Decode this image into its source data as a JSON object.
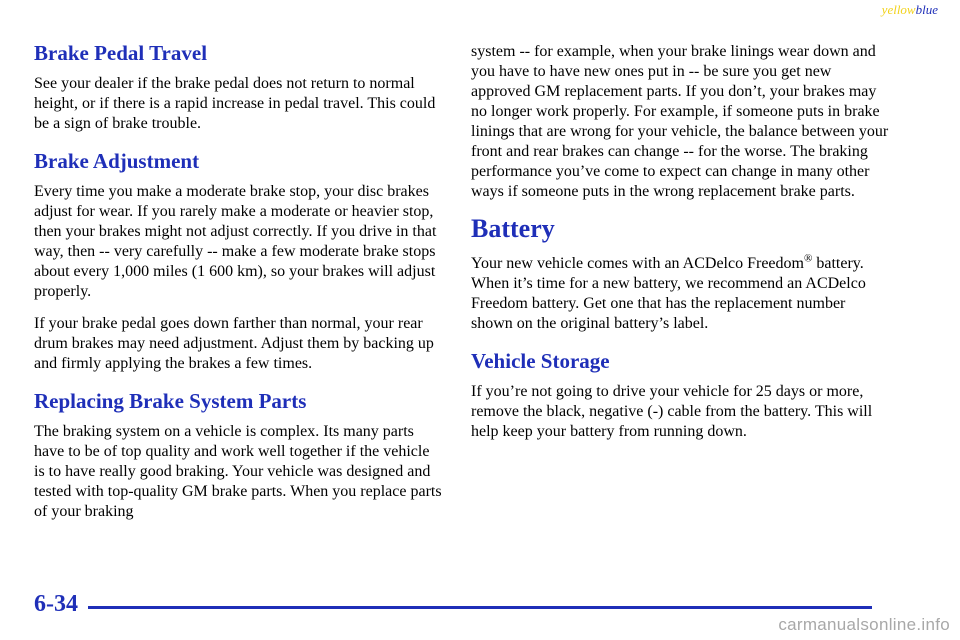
{
  "corner_tag": {
    "yellow": "yellow",
    "blue": "blue"
  },
  "left_column": {
    "brake_pedal_travel": {
      "heading": "Brake Pedal Travel",
      "paragraph": "See your dealer if the brake pedal does not return to normal height, or if there is a rapid increase in pedal travel. This could be a sign of brake trouble."
    },
    "brake_adjustment": {
      "heading": "Brake Adjustment",
      "paragraph_1": "Every time you make a moderate brake stop, your disc brakes adjust for wear. If you rarely make a moderate or heavier stop, then your brakes might not adjust correctly. If you drive in that way, then -- very carefully -- make a few moderate brake stops about every 1,000 miles (1 600 km), so your brakes will adjust properly.",
      "paragraph_2": "If your brake pedal goes down farther than normal, your rear drum brakes may need adjustment. Adjust them by backing up and firmly applying the brakes a few times."
    },
    "replacing_parts": {
      "heading": "Replacing Brake System Parts",
      "paragraph": "The braking system on a vehicle is complex. Its many parts have to be of top quality and work well together if the vehicle is to have really good braking. Your vehicle was designed and tested with top-quality GM brake parts. When you replace parts of your braking"
    }
  },
  "right_column": {
    "continued_paragraph": "system -- for example, when your brake linings wear down and you have to have new ones put in -- be sure you get new approved GM replacement parts. If you don’t, your brakes may no longer work properly. For example, if someone puts in brake linings that are wrong for your vehicle, the balance between your front and rear brakes can change -- for the worse. The braking performance you’ve come to expect can change in many other ways if someone puts in the wrong replacement brake parts.",
    "battery": {
      "heading": "Battery",
      "paragraph_lead": "Your new vehicle comes with an ACDelco Freedom",
      "registered_mark": "®",
      "paragraph_rest": " battery. When it’s time for a new battery, we recommend an ACDelco Freedom battery. Get one that has the replacement number shown on the original battery’s label."
    },
    "vehicle_storage": {
      "heading": "Vehicle Storage",
      "paragraph": "If you’re not going to drive your vehicle for 25 days or more, remove the black, negative (-) cable from the battery. This will help keep your battery from running down."
    }
  },
  "footer": {
    "page_number": "6-34",
    "watermark": "carmanualsonline.info"
  },
  "colors": {
    "heading_blue": "#1f2fb8",
    "tag_yellow": "#f2d21b",
    "watermark_gray": "#a8a8a8"
  }
}
